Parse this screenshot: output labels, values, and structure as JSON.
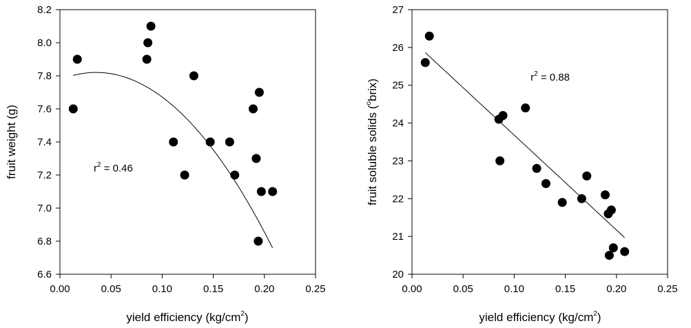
{
  "chart_data": [
    {
      "type": "scatter",
      "xlabel": "yield efficiency (kg/cm",
      "xlabel_sup": "2",
      "xlabel_end": ")",
      "ylabel": "fruit weight (g)",
      "xlim": [
        0,
        0.25
      ],
      "ylim": [
        6.6,
        8.2
      ],
      "xticks": [
        "0.00",
        "0.05",
        "0.10",
        "0.15",
        "0.20",
        "0.25"
      ],
      "yticks": [
        "6.6",
        "6.8",
        "7.0",
        "7.2",
        "7.4",
        "7.6",
        "7.8",
        "8.0",
        "8.2"
      ],
      "annotation": {
        "prefix": "r",
        "sup": "2",
        "text": " = 0.46",
        "x": 0.033,
        "y": 7.22
      },
      "grid": false,
      "points": [
        {
          "x": 0.013,
          "y": 7.6
        },
        {
          "x": 0.017,
          "y": 7.9
        },
        {
          "x": 0.085,
          "y": 7.9
        },
        {
          "x": 0.086,
          "y": 8.0
        },
        {
          "x": 0.089,
          "y": 8.1
        },
        {
          "x": 0.111,
          "y": 7.4
        },
        {
          "x": 0.122,
          "y": 7.2
        },
        {
          "x": 0.131,
          "y": 7.8
        },
        {
          "x": 0.147,
          "y": 7.4
        },
        {
          "x": 0.166,
          "y": 7.4
        },
        {
          "x": 0.171,
          "y": 7.2
        },
        {
          "x": 0.189,
          "y": 7.6
        },
        {
          "x": 0.192,
          "y": 7.3
        },
        {
          "x": 0.194,
          "y": 6.8
        },
        {
          "x": 0.195,
          "y": 7.7
        },
        {
          "x": 0.197,
          "y": 7.1
        },
        {
          "x": 0.208,
          "y": 7.1
        }
      ],
      "fit": {
        "kind": "quadratic",
        "a": -35.6,
        "b": 2.514,
        "c": 7.776,
        "x_range": [
          0.013,
          0.208
        ]
      }
    },
    {
      "type": "scatter",
      "xlabel": "yield efficiency (kg/cm",
      "xlabel_sup": "2",
      "xlabel_end": ")",
      "ylabel": "fruit soluble solids (",
      "ylabel_sup": "o",
      "ylabel_end": "brix)",
      "xlim": [
        0,
        0.25
      ],
      "ylim": [
        20,
        27
      ],
      "xticks": [
        "0.00",
        "0.05",
        "0.10",
        "0.15",
        "0.20",
        "0.25"
      ],
      "yticks": [
        "20",
        "21",
        "22",
        "23",
        "24",
        "25",
        "26",
        "27"
      ],
      "annotation": {
        "prefix": "r",
        "sup": "2",
        "text": " = 0.88",
        "x": 0.116,
        "y": 25.12
      },
      "grid": false,
      "points": [
        {
          "x": 0.013,
          "y": 25.6
        },
        {
          "x": 0.017,
          "y": 26.3
        },
        {
          "x": 0.085,
          "y": 24.1
        },
        {
          "x": 0.086,
          "y": 23.0
        },
        {
          "x": 0.089,
          "y": 24.2
        },
        {
          "x": 0.111,
          "y": 24.4
        },
        {
          "x": 0.122,
          "y": 22.8
        },
        {
          "x": 0.131,
          "y": 22.4
        },
        {
          "x": 0.147,
          "y": 21.9
        },
        {
          "x": 0.166,
          "y": 22.0
        },
        {
          "x": 0.171,
          "y": 22.6
        },
        {
          "x": 0.189,
          "y": 22.1
        },
        {
          "x": 0.192,
          "y": 21.6
        },
        {
          "x": 0.193,
          "y": 20.5
        },
        {
          "x": 0.195,
          "y": 21.7
        },
        {
          "x": 0.197,
          "y": 20.7
        },
        {
          "x": 0.208,
          "y": 20.6
        }
      ],
      "fit": {
        "kind": "linear",
        "slope": -25.1,
        "intercept": 26.19,
        "x_range": [
          0.013,
          0.208
        ]
      }
    }
  ]
}
